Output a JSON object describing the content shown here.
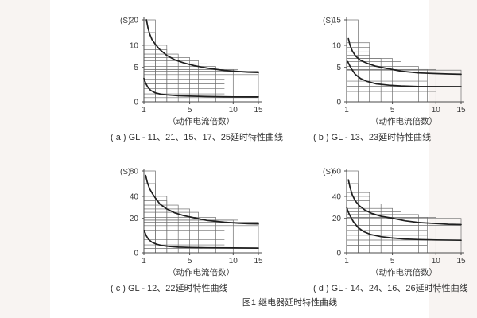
{
  "page": {
    "background_color": "#f8f4f2",
    "sheet_color": "#ffffff",
    "grid_color": "#6e6e6e",
    "axis_color": "#4a4a4a",
    "curve_color": "#1f1f1f",
    "text_color": "#3a3a3a"
  },
  "figure_caption": "图1  继电器延时特性曲线",
  "chart_data": [
    {
      "type": "line",
      "panel": "a",
      "caption": "( a ) GL - 11、21、15、17、25延时特性曲线",
      "y_unit_label": "(S)",
      "xlabel": "（动作电流倍数）",
      "x_ticks": [
        1,
        5,
        10,
        15
      ],
      "y_ticks": [
        0,
        5,
        10,
        20
      ],
      "xlim": [
        1,
        15
      ],
      "ylim": [
        0,
        20
      ],
      "series": [
        {
          "name": "upper-limit-curve",
          "points": [
            [
              1.22,
              20
            ],
            [
              1.35,
              17
            ],
            [
              1.5,
              14.5
            ],
            [
              1.7,
              12.3
            ],
            [
              2,
              10.4
            ],
            [
              2.4,
              9.0
            ],
            [
              3,
              7.7
            ],
            [
              3.7,
              6.7
            ],
            [
              4.5,
              6.0
            ],
            [
              5.5,
              5.4
            ],
            [
              7,
              4.9
            ],
            [
              9,
              4.55
            ],
            [
              11,
              4.4
            ],
            [
              13,
              4.3
            ],
            [
              15,
              4.25
            ]
          ]
        },
        {
          "name": "lower-limit-curve",
          "points": [
            [
              1.0,
              3.4
            ],
            [
              1.15,
              2.7
            ],
            [
              1.35,
              2.1
            ],
            [
              1.6,
              1.65
            ],
            [
              2,
              1.3
            ],
            [
              2.5,
              1.1
            ],
            [
              3,
              1.0
            ],
            [
              4,
              0.88
            ],
            [
              5,
              0.82
            ],
            [
              7,
              0.76
            ],
            [
              10,
              0.72
            ],
            [
              15,
              0.7
            ]
          ]
        }
      ],
      "tolerance_steps": [
        [
          2,
          20
        ],
        [
          2,
          15
        ],
        [
          3,
          10
        ],
        [
          3,
          9
        ],
        [
          4,
          8
        ],
        [
          5,
          7.2
        ],
        [
          6,
          6.5
        ],
        [
          7,
          5.8
        ],
        [
          8,
          5.2
        ],
        [
          10,
          4.7
        ],
        [
          11,
          4.7
        ],
        [
          15,
          4.45
        ]
      ],
      "band_lines": [
        [
          15,
          3.95
        ],
        [
          9,
          3.3
        ],
        [
          9,
          2.6
        ],
        [
          9,
          1.9
        ],
        [
          9,
          1.15
        ],
        [
          15,
          0.6
        ]
      ]
    },
    {
      "type": "line",
      "panel": "b",
      "caption": "( b ) GL - 13、23延时特性曲线",
      "y_unit_label": "(S)",
      "xlabel": "（动作电流倍数）",
      "x_ticks": [
        1,
        5,
        10,
        15
      ],
      "y_ticks": [
        0,
        5,
        10,
        15
      ],
      "xlim": [
        1,
        15
      ],
      "ylim": [
        0,
        15
      ],
      "series": [
        {
          "name": "upper-limit-curve",
          "points": [
            [
              1.15,
              11.3
            ],
            [
              1.3,
              10.0
            ],
            [
              1.5,
              8.7
            ],
            [
              1.8,
              7.5
            ],
            [
              2.2,
              6.6
            ],
            [
              2.8,
              5.9
            ],
            [
              3.5,
              5.3
            ],
            [
              4.5,
              4.85
            ],
            [
              6,
              4.45
            ],
            [
              8,
              4.2
            ],
            [
              10,
              4.1
            ],
            [
              12.5,
              4.05
            ],
            [
              15,
              4.0
            ]
          ]
        },
        {
          "name": "lower-limit-curve",
          "points": [
            [
              1.1,
              6.3
            ],
            [
              1.25,
              5.5
            ],
            [
              1.45,
              4.7
            ],
            [
              1.75,
              4.0
            ],
            [
              2.2,
              3.4
            ],
            [
              2.8,
              2.95
            ],
            [
              3.6,
              2.6
            ],
            [
              4.7,
              2.4
            ],
            [
              6,
              2.3
            ],
            [
              8,
              2.22
            ],
            [
              10,
              2.2
            ],
            [
              15,
              2.18
            ]
          ]
        }
      ],
      "tolerance_steps": [
        [
          2,
          15
        ],
        [
          3,
          10.5
        ],
        [
          3,
          9.5
        ],
        [
          3,
          8.5
        ],
        [
          3,
          7.7
        ],
        [
          4,
          7
        ],
        [
          5,
          7
        ],
        [
          6,
          6.3
        ],
        [
          8,
          5.2
        ],
        [
          9,
          4.7
        ],
        [
          10,
          4.7
        ],
        [
          15,
          4.6
        ]
      ],
      "band_lines": [
        [
          9,
          3.0
        ],
        [
          15,
          2.25
        ],
        [
          10,
          1.5
        ]
      ]
    },
    {
      "type": "line",
      "panel": "c",
      "caption": "( c ) GL - 12、22延时特性曲线",
      "y_unit_label": "(S)",
      "xlabel": "（动作电流倍数）",
      "x_ticks": [
        1,
        5,
        10,
        15
      ],
      "y_ticks": [
        0,
        20,
        40,
        80
      ],
      "xlim": [
        1,
        15
      ],
      "ylim": [
        0,
        80
      ],
      "series": [
        {
          "name": "upper-limit-curve",
          "points": [
            [
              1.15,
              73
            ],
            [
              1.3,
              62
            ],
            [
              1.5,
              52
            ],
            [
              1.75,
              44
            ],
            [
              2,
              38.5
            ],
            [
              2.4,
              33
            ],
            [
              3,
              28.5
            ],
            [
              3.7,
              25
            ],
            [
              4.5,
              22.5
            ],
            [
              5.5,
              20.5
            ],
            [
              7,
              18.8
            ],
            [
              9,
              17.8
            ],
            [
              11,
              17.2
            ],
            [
              13,
              16.9
            ],
            [
              15,
              16.8
            ]
          ]
        },
        {
          "name": "lower-limit-curve",
          "points": [
            [
              1.03,
              13
            ],
            [
              1.2,
              10
            ],
            [
              1.4,
              7.8
            ],
            [
              1.7,
              6.2
            ],
            [
              2.1,
              5.0
            ],
            [
              2.6,
              4.2
            ],
            [
              3.2,
              3.7
            ],
            [
              4,
              3.3
            ],
            [
              5,
              3.1
            ],
            [
              7,
              2.9
            ],
            [
              10,
              2.8
            ],
            [
              15,
              2.75
            ]
          ]
        }
      ],
      "tolerance_steps": [
        [
          2,
          80
        ],
        [
          2,
          60
        ],
        [
          3,
          40
        ],
        [
          3,
          36
        ],
        [
          4,
          32
        ],
        [
          5,
          28.5
        ],
        [
          6,
          25.5
        ],
        [
          7,
          23
        ],
        [
          8,
          21
        ],
        [
          10,
          19
        ],
        [
          11,
          19
        ],
        [
          15,
          17.8
        ]
      ],
      "band_lines": [
        [
          15,
          15.8
        ],
        [
          9,
          13.2
        ],
        [
          9,
          10.4
        ],
        [
          9,
          7.6
        ],
        [
          9,
          4.6
        ],
        [
          15,
          2.6
        ]
      ]
    },
    {
      "type": "line",
      "panel": "d",
      "caption": "( d ) GL - 14、24、16、26延时特性曲线",
      "y_unit_label": "(S)",
      "xlabel": "（动作电流倍数）",
      "x_ticks": [
        1,
        5,
        10,
        15
      ],
      "y_ticks": [
        0,
        20,
        40,
        60
      ],
      "xlim": [
        1,
        15
      ],
      "ylim": [
        0,
        60
      ],
      "series": [
        {
          "name": "upper-limit-curve",
          "points": [
            [
              1.15,
              53
            ],
            [
              1.3,
              47
            ],
            [
              1.5,
              41
            ],
            [
              1.75,
              36
            ],
            [
              2.1,
              31.5
            ],
            [
              2.6,
              27.5
            ],
            [
              3.2,
              24.5
            ],
            [
              4,
              22
            ],
            [
              5,
              20.2
            ],
            [
              6.5,
              18.6
            ],
            [
              8,
              17.6
            ],
            [
              10,
              17
            ],
            [
              12.5,
              16.6
            ],
            [
              15,
              16.4
            ]
          ]
        },
        {
          "name": "lower-limit-curve",
          "points": [
            [
              1.0,
              30
            ],
            [
              1.15,
              25.5
            ],
            [
              1.35,
              21.5
            ],
            [
              1.6,
              18
            ],
            [
              2,
              14.7
            ],
            [
              2.5,
              12.3
            ],
            [
              3.1,
              10.7
            ],
            [
              4,
              9.4
            ],
            [
              5,
              8.6
            ],
            [
              6.5,
              8.0
            ],
            [
              8,
              7.7
            ],
            [
              10,
              7.5
            ],
            [
              15,
              7.3
            ]
          ]
        }
      ],
      "tolerance_steps": [
        [
          2,
          60
        ],
        [
          2,
          50
        ],
        [
          3,
          43
        ],
        [
          3,
          40
        ],
        [
          3,
          36
        ],
        [
          4,
          33
        ],
        [
          5,
          29
        ],
        [
          6,
          26
        ],
        [
          8,
          23.5
        ],
        [
          9,
          21
        ],
        [
          10,
          21
        ],
        [
          15,
          20
        ]
      ],
      "band_lines": [
        [
          15,
          16
        ],
        [
          9,
          13
        ],
        [
          9,
          10.2
        ],
        [
          15,
          7.4
        ],
        [
          9,
          4.4
        ]
      ]
    }
  ]
}
